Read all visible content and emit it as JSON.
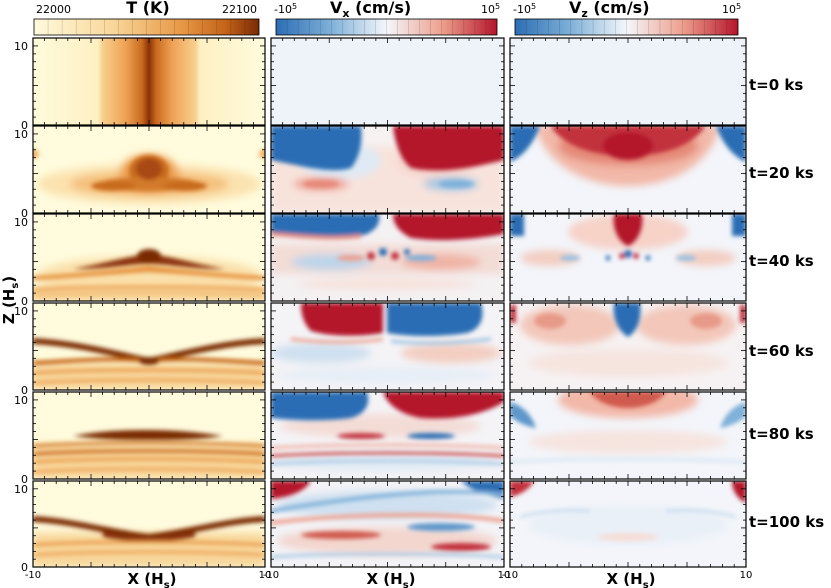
{
  "figure": {
    "row_labels": [
      "t=0 ks",
      "t=20 ks",
      "t=40 ks",
      "t=60 ks",
      "t=80 ks",
      "t=100 ks"
    ],
    "y_axis_label": "Z (H",
    "y_axis_label_sub": "s",
    "y_axis_label_close": ")",
    "x_axis_label": "X (H",
    "x_axis_label_sub": "s",
    "x_axis_label_close": ")",
    "column_titles": [
      {
        "main": "T (K)",
        "sub": ""
      },
      {
        "main": "V",
        "sub": "x",
        "rest": " (cm/s)"
      },
      {
        "main": "V",
        "sub": "z",
        "rest": " (cm/s)"
      }
    ],
    "colorbars": [
      {
        "min_label": "22000",
        "max_label": "22100",
        "colormap": "cream-orange-brown"
      },
      {
        "min_label": "-10",
        "min_exp": "5",
        "max_label": "10",
        "max_exp": "5",
        "colormap": "blue-white-red"
      },
      {
        "min_label": "-10",
        "min_exp": "5",
        "max_label": "10",
        "max_exp": "5",
        "colormap": "blue-white-red"
      }
    ],
    "y_ticks": [
      "0",
      "10"
    ],
    "x_ticks": [
      "-10",
      "10"
    ],
    "colors": {
      "temp_low": "#fffbdc",
      "temp_mid": "#f5b46a",
      "temp_high": "#7a2a05",
      "vel_neg": "#2c6db4",
      "vel_zero": "#f2f6fb",
      "vel_pos": "#b4152b"
    }
  },
  "chart_data": [
    {
      "type": "heatmap",
      "title": "T (K)",
      "colorbar_range": [
        22000,
        22100
      ],
      "xlabel": "X (Hs)",
      "ylabel": "Z (Hs)",
      "xlim": [
        -10,
        10
      ],
      "ylim": [
        0,
        11
      ],
      "rows": [
        "t=0 ks",
        "t=20 ks",
        "t=40 ks",
        "t=60 ks",
        "t=80 ks",
        "t=100 ks"
      ]
    },
    {
      "type": "heatmap",
      "title": "Vx (cm/s)",
      "colorbar_range": [
        -100000,
        100000
      ],
      "xlabel": "X (Hs)",
      "xlim": [
        -10,
        10
      ],
      "ylim": [
        0,
        11
      ],
      "rows": [
        "t=0 ks",
        "t=20 ks",
        "t=40 ks",
        "t=60 ks",
        "t=80 ks",
        "t=100 ks"
      ]
    },
    {
      "type": "heatmap",
      "title": "Vz (cm/s)",
      "colorbar_range": [
        -100000,
        100000
      ],
      "xlabel": "X (Hs)",
      "xlim": [
        -10,
        10
      ],
      "ylim": [
        0,
        11
      ],
      "rows": [
        "t=0 ks",
        "t=20 ks",
        "t=40 ks",
        "t=60 ks",
        "t=80 ks",
        "t=100 ks"
      ]
    }
  ]
}
